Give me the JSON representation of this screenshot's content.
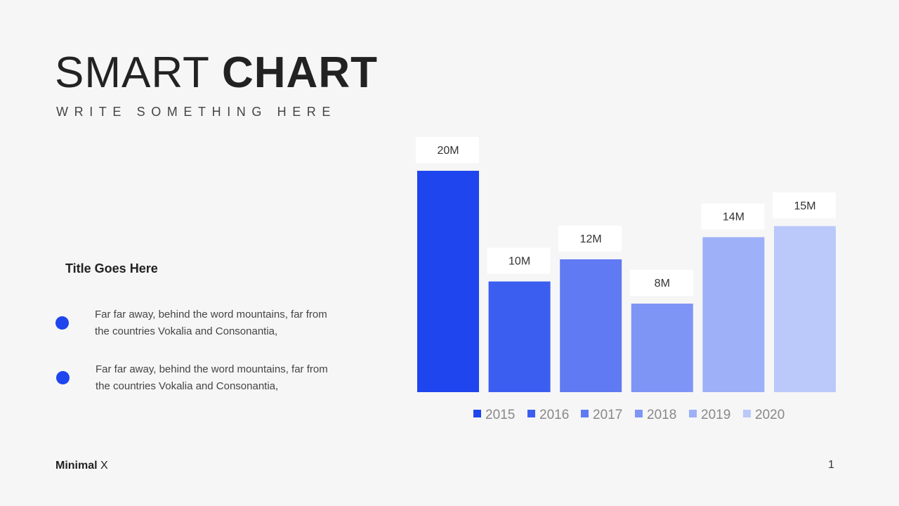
{
  "slide": {
    "title_light": "SMART",
    "title_bold": "CHART",
    "subtitle": "WRITE SOMETHING HERE"
  },
  "side": {
    "title": "Title Goes Here",
    "bullets": [
      "Far far away, behind the word mountains, far from the countries Vokalia and Consonantia,",
      "Far far away, behind the word mountains, far from the countries Vokalia and Consonantia,"
    ],
    "bullet_color": "#1e45ee"
  },
  "footer": {
    "brand_bold": "Minimal",
    "brand_light": "X",
    "page": "1"
  },
  "chart_data": {
    "type": "bar",
    "categories": [
      "2015",
      "2016",
      "2017",
      "2018",
      "2019",
      "2020"
    ],
    "values": [
      20,
      10,
      12,
      8,
      14,
      15
    ],
    "data_labels": [
      "20M",
      "10M",
      "12M",
      "8M",
      "14M",
      "15M"
    ],
    "colors": [
      "#1e45ee",
      "#3c5ef0",
      "#5f7af2",
      "#7f95f5",
      "#9eb0f8",
      "#bac8fa"
    ],
    "legend": [
      "2015",
      "2016",
      "2017",
      "2018",
      "2019",
      "2020"
    ],
    "legend_position": "bottom",
    "ylim": [
      0,
      20
    ],
    "grid": false
  }
}
